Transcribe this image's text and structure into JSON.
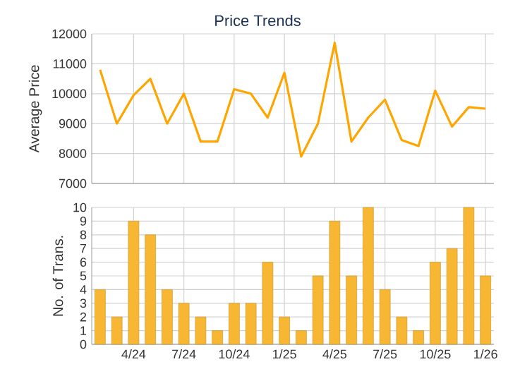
{
  "chart_data": [
    {
      "type": "line",
      "title": "Price Trends",
      "ylabel": "Average Price",
      "categories": [
        null,
        null,
        null,
        null,
        null,
        null,
        null,
        null,
        null,
        null,
        null,
        null,
        null,
        null,
        null,
        null,
        null,
        null,
        null,
        null,
        null,
        null,
        null,
        null
      ],
      "values": [
        10800,
        9000,
        9950,
        10500,
        9000,
        10000,
        8400,
        8400,
        10150,
        10000,
        9200,
        10700,
        7900,
        9000,
        11700,
        8400,
        9200,
        9800,
        8450,
        8250,
        10100,
        8900,
        9550,
        9500
      ],
      "color": "#ffa500",
      "ylim": [
        7000,
        12000
      ],
      "yticks": [
        7000,
        8000,
        9000,
        10000,
        11000,
        12000
      ],
      "grid": true,
      "tick_labels": "y",
      "marker": "none"
    },
    {
      "type": "bar",
      "ylabel": "No. of Trans.",
      "categories": [
        null,
        null,
        "4/24",
        null,
        null,
        "7/24",
        null,
        null,
        "10/24",
        null,
        null,
        "1/25",
        null,
        null,
        "4/25",
        null,
        null,
        "7/25",
        null,
        null,
        "10/25",
        null,
        null,
        "1/26"
      ],
      "values": [
        4,
        2,
        9,
        8,
        4,
        3,
        2,
        1,
        3,
        3,
        6,
        2,
        1,
        5,
        9,
        5,
        10,
        4,
        2,
        1,
        6,
        7,
        10,
        5
      ],
      "color": "#f7b733",
      "ylim": [
        0,
        10
      ],
      "yticks": [
        0,
        1,
        2,
        3,
        4,
        5,
        6,
        7,
        8,
        9,
        10
      ],
      "grid": true
    }
  ]
}
